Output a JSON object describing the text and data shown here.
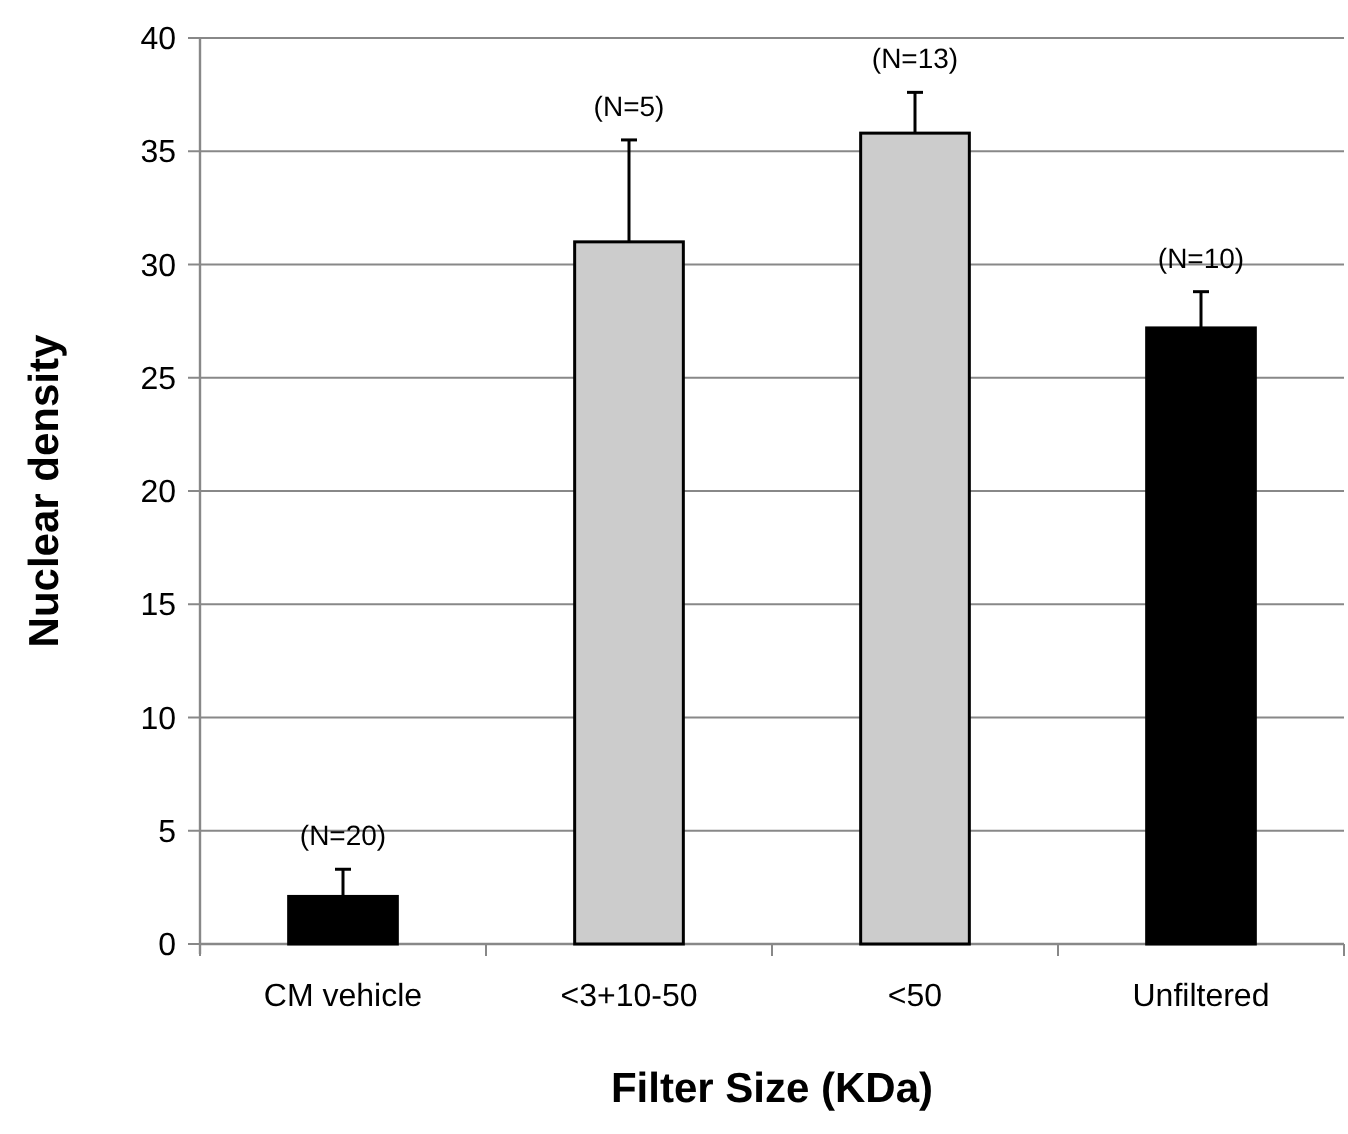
{
  "chart_data": {
    "type": "bar",
    "xlabel": "Filter Size (KDa)",
    "ylabel": "Nuclear density",
    "categories": [
      "CM vehicle",
      "<3+10-50",
      "<50",
      "Unfiltered"
    ],
    "values": [
      2.1,
      31.0,
      35.8,
      27.2
    ],
    "colors": [
      "#000000",
      "#cccccc",
      "#cccccc",
      "#000000"
    ],
    "errors": [
      [
        2.1,
        3.3
      ],
      [
        31.0,
        35.5
      ],
      [
        35.8,
        37.6
      ],
      [
        27.2,
        28.8
      ]
    ],
    "ylim": [
      0,
      40
    ],
    "yticks": [
      0,
      5,
      10,
      15,
      20,
      25,
      30,
      35,
      40
    ],
    "grid": "y",
    "annotations": [
      {
        "text": "(N=20)",
        "x": "CM vehicle",
        "y": 3.3
      },
      {
        "text": "(N=5)",
        "x": "<3+10-50",
        "y": 35.5
      },
      {
        "text": "(N=13)",
        "x": "<50",
        "y": 37.6
      },
      {
        "text": "(N=10)",
        "x": "Unfiltered",
        "y": 28.8
      }
    ]
  }
}
